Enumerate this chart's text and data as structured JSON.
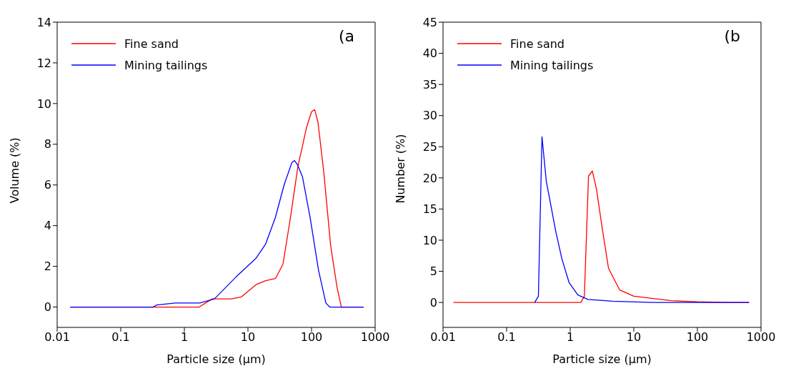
{
  "chart_data": [
    {
      "type": "line",
      "xlabel": "Particle size (μm)",
      "ylabel": "Volume (%)",
      "annotations": [
        "(a"
      ],
      "log": "x",
      "xlim": [
        0.01,
        1000
      ],
      "xticks": [
        0.01,
        0.1,
        1,
        10,
        100,
        1000
      ],
      "ylim": [
        -1,
        14
      ],
      "yticks": [
        0,
        2,
        4,
        6,
        8,
        10,
        12,
        14
      ],
      "legend": "top left",
      "line_style": "solid",
      "series": [
        {
          "name": "Fine sand",
          "color": "#ff0000",
          "x": [
            0.016,
            1.71,
            2.74,
            5.5,
            7.9,
            13.4,
            19,
            27,
            35.5,
            46.6,
            61,
            83,
            100,
            112,
            126,
            155,
            200,
            251,
            294,
            660
          ],
          "values": [
            0,
            0,
            0.4,
            0.4,
            0.5,
            1.1,
            1.3,
            1.4,
            2.1,
            4.4,
            6.9,
            8.8,
            9.6,
            9.7,
            9.1,
            6.7,
            3.0,
            1.0,
            0,
            0
          ]
        },
        {
          "name": "Mining tailings",
          "color": "#0000ff",
          "x": [
            0.016,
            0.32,
            0.37,
            0.72,
            1.75,
            2.97,
            6.6,
            13.4,
            19,
            27,
            37,
            49,
            54,
            60,
            72,
            95,
            129,
            168,
            193,
            660
          ],
          "values": [
            0,
            0,
            0.1,
            0.2,
            0.2,
            0.4,
            1.5,
            2.4,
            3.1,
            4.4,
            6.0,
            7.1,
            7.2,
            7.0,
            6.4,
            4.4,
            1.8,
            0.2,
            0,
            0
          ]
        }
      ]
    },
    {
      "type": "line",
      "xlabel": "Particle size (μm)",
      "ylabel": "Number (%)",
      "annotations": [
        "(b"
      ],
      "log": "x",
      "xlim": [
        0.01,
        1000
      ],
      "xticks": [
        0.01,
        0.1,
        1,
        10,
        100,
        1000
      ],
      "ylim": [
        -4,
        45
      ],
      "yticks": [
        0,
        5,
        10,
        15,
        20,
        25,
        30,
        35,
        40,
        45
      ],
      "legend": "top left",
      "line_style": "solid",
      "series": [
        {
          "name": "Fine sand",
          "color": "#ff0000",
          "x": [
            0.0146,
            1.47,
            1.67,
            1.94,
            2.23,
            2.59,
            3.2,
            4.0,
            6,
            10,
            39,
            100,
            300,
            650
          ],
          "values": [
            0,
            0,
            1,
            20.3,
            21.1,
            18.2,
            11.8,
            5.5,
            2,
            1,
            0.3,
            0.1,
            0,
            0
          ]
        },
        {
          "name": "Mining tailings",
          "color": "#0000ff",
          "x": [
            0.276,
            0.316,
            0.36,
            0.42,
            0.49,
            0.59,
            0.74,
            0.96,
            1.32,
            1.9,
            4.6,
            20,
            50,
            650
          ],
          "values": [
            0,
            1,
            26.6,
            19.5,
            15.9,
            11.5,
            7.0,
            3.2,
            1.2,
            0.5,
            0.2,
            0,
            0,
            0
          ]
        }
      ]
    }
  ]
}
